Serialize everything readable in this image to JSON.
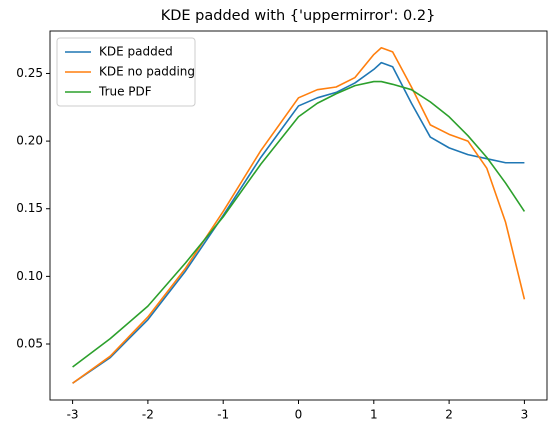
{
  "chart_data": {
    "type": "line",
    "title": "KDE padded with {'uppermirror': 0.2}",
    "x": [
      -3,
      -2.5,
      -2,
      -1.5,
      -1,
      -0.5,
      0,
      0.25,
      0.5,
      0.75,
      1,
      1.1,
      1.25,
      1.5,
      1.75,
      2,
      2.25,
      2.5,
      2.75,
      3
    ],
    "series": [
      {
        "name": "KDE padded",
        "color": "#1f77b4",
        "values": [
          0.021,
          0.04,
          0.068,
          0.104,
          0.145,
          0.188,
          0.226,
          0.232,
          0.236,
          0.243,
          0.253,
          0.258,
          0.255,
          0.228,
          0.203,
          0.195,
          0.19,
          0.187,
          0.184,
          0.184
        ]
      },
      {
        "name": "KDE no padding",
        "color": "#ff7f0e",
        "values": [
          0.021,
          0.041,
          0.07,
          0.106,
          0.148,
          0.193,
          0.232,
          0.238,
          0.24,
          0.247,
          0.264,
          0.269,
          0.266,
          0.24,
          0.212,
          0.205,
          0.2,
          0.18,
          0.14,
          0.083
        ]
      },
      {
        "name": "True PDF",
        "color": "#2ca02c",
        "values": [
          0.033,
          0.054,
          0.078,
          0.11,
          0.144,
          0.183,
          0.218,
          0.228,
          0.235,
          0.241,
          0.244,
          0.244,
          0.242,
          0.238,
          0.229,
          0.218,
          0.204,
          0.188,
          0.169,
          0.148
        ]
      }
    ],
    "xlim": [
      -3.3,
      3.3
    ],
    "ylim": [
      0.0086,
      0.2814
    ],
    "xticks": [
      -3,
      -2,
      -1,
      0,
      1,
      2,
      3
    ],
    "yticks": [
      0.05,
      {
        "value": 0.1,
        "label": "0.10"
      },
      0.15,
      {
        "value": 0.2,
        "label": "0.20"
      },
      0.25
    ],
    "legend": "upper left"
  }
}
